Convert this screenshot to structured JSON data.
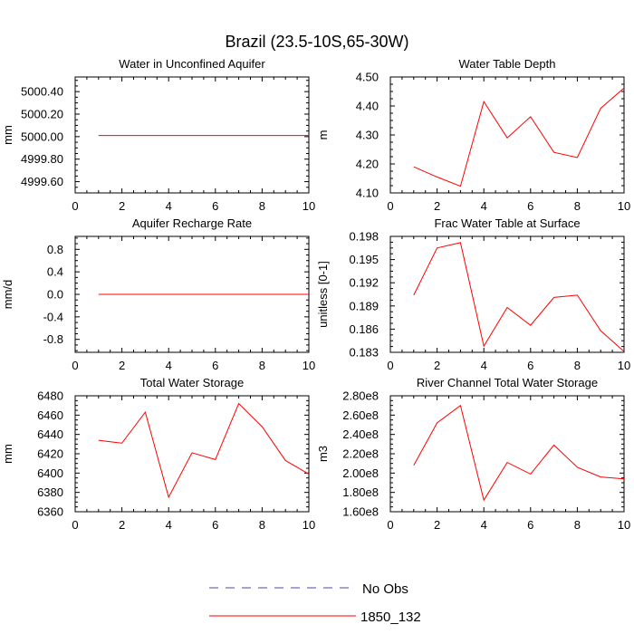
{
  "figure": {
    "title": "Brazil (23.5-10S,65-30W)"
  },
  "chart_data": [
    {
      "type": "line",
      "title": "Water in Unconfined Aquifer",
      "xlabel": "",
      "ylabel": "mm",
      "xlim": [
        0,
        10
      ],
      "ylim": [
        4999.5,
        5000.53
      ],
      "xticks": [
        0,
        2,
        4,
        6,
        8,
        10
      ],
      "xtick_labels": [
        "0",
        "2",
        "4",
        "6",
        "8",
        "10"
      ],
      "yticks": [
        4999.6,
        4999.8,
        5000.0,
        5000.2,
        5000.4
      ],
      "ytick_labels": [
        "4999.60",
        "4999.80",
        "5000.00",
        "5000.20",
        "5000.40"
      ],
      "series": [
        {
          "name": "1850_132",
          "color": "#ff0000",
          "x": [
            1,
            2,
            3,
            4,
            5,
            6,
            7,
            8,
            9,
            10
          ],
          "values": [
            5000.01,
            5000.01,
            5000.01,
            5000.01,
            5000.01,
            5000.01,
            5000.01,
            5000.01,
            5000.01,
            5000.01
          ]
        }
      ]
    },
    {
      "type": "line",
      "title": "Water Table Depth",
      "xlabel": "",
      "ylabel": "m",
      "xlim": [
        0,
        10
      ],
      "ylim": [
        4.1,
        4.5
      ],
      "xticks": [
        0,
        2,
        4,
        6,
        8,
        10
      ],
      "xtick_labels": [
        "0",
        "2",
        "4",
        "6",
        "8",
        "10"
      ],
      "yticks": [
        4.1,
        4.2,
        4.3,
        4.4,
        4.5
      ],
      "ytick_labels": [
        "4.10",
        "4.20",
        "4.30",
        "4.40",
        "4.50"
      ],
      "series": [
        {
          "name": "1850_132",
          "color": "#ff0000",
          "x": [
            1,
            2,
            3,
            4,
            5,
            6,
            7,
            8,
            9,
            10
          ],
          "values": [
            4.19,
            4.155,
            4.123,
            4.415,
            4.29,
            4.363,
            4.24,
            4.222,
            4.392,
            4.462
          ]
        }
      ]
    },
    {
      "type": "line",
      "title": "Aquifer Recharge Rate",
      "xlabel": "",
      "ylabel": "mm/d",
      "xlim": [
        0,
        10
      ],
      "ylim": [
        -1.03,
        1.03
      ],
      "xticks": [
        0,
        2,
        4,
        6,
        8,
        10
      ],
      "xtick_labels": [
        "0",
        "2",
        "4",
        "6",
        "8",
        "10"
      ],
      "yticks": [
        -0.8,
        -0.4,
        0.0,
        0.4,
        0.8
      ],
      "ytick_labels": [
        "-0.8",
        "-0.4",
        "0.0",
        "0.4",
        "0.8"
      ],
      "series": [
        {
          "name": "1850_132",
          "color": "#ff0000",
          "x": [
            1,
            2,
            3,
            4,
            5,
            6,
            7,
            8,
            9,
            10
          ],
          "values": [
            0,
            0,
            0,
            0,
            0,
            0,
            0,
            0,
            0,
            0
          ]
        }
      ]
    },
    {
      "type": "line",
      "title": "Frac Water Table at Surface",
      "xlabel": "",
      "ylabel": "unitless [0-1]",
      "xlim": [
        0,
        10
      ],
      "ylim": [
        0.183,
        0.198
      ],
      "xticks": [
        0,
        2,
        4,
        6,
        8,
        10
      ],
      "xtick_labels": [
        "0",
        "2",
        "4",
        "6",
        "8",
        "10"
      ],
      "yticks": [
        0.183,
        0.186,
        0.189,
        0.192,
        0.195,
        0.198
      ],
      "ytick_labels": [
        "0.183",
        "0.186",
        "0.189",
        "0.192",
        "0.195",
        "0.198"
      ],
      "series": [
        {
          "name": "1850_132",
          "color": "#ff0000",
          "x": [
            1,
            2,
            3,
            4,
            5,
            6,
            7,
            8,
            9,
            10
          ],
          "values": [
            0.1904,
            0.1965,
            0.1972,
            0.1838,
            0.1888,
            0.1865,
            0.1901,
            0.1904,
            0.1858,
            0.1831
          ]
        }
      ]
    },
    {
      "type": "line",
      "title": "Total Water Storage",
      "xlabel": "",
      "ylabel": "mm",
      "xlim": [
        0,
        10
      ],
      "ylim": [
        6360,
        6480
      ],
      "xticks": [
        0,
        2,
        4,
        6,
        8,
        10
      ],
      "xtick_labels": [
        "0",
        "2",
        "4",
        "6",
        "8",
        "10"
      ],
      "yticks": [
        6360,
        6380,
        6400,
        6420,
        6440,
        6460,
        6480
      ],
      "ytick_labels": [
        "6360",
        "6380",
        "6400",
        "6420",
        "6440",
        "6460",
        "6480"
      ],
      "series": [
        {
          "name": "1850_132",
          "color": "#ff0000",
          "x": [
            1,
            2,
            3,
            4,
            5,
            6,
            7,
            8,
            9,
            10
          ],
          "values": [
            6434,
            6431,
            6463,
            6375,
            6421,
            6414,
            6472,
            6448,
            6413,
            6399
          ]
        }
      ]
    },
    {
      "type": "line",
      "title": "River Channel Total Water Storage",
      "xlabel": "",
      "ylabel": "m3",
      "xlim": [
        0,
        10
      ],
      "ylim": [
        160000000,
        280000000
      ],
      "xticks": [
        0,
        2,
        4,
        6,
        8,
        10
      ],
      "xtick_labels": [
        "0",
        "2",
        "4",
        "6",
        "8",
        "10"
      ],
      "yticks": [
        160000000,
        180000000,
        200000000,
        220000000,
        240000000,
        260000000,
        280000000
      ],
      "ytick_labels": [
        "1.60e8",
        "1.80e8",
        "2.00e8",
        "2.20e8",
        "2.40e8",
        "2.60e8",
        "2.80e8"
      ],
      "series": [
        {
          "name": "1850_132",
          "color": "#ff0000",
          "x": [
            1,
            2,
            3,
            4,
            5,
            6,
            7,
            8,
            9,
            10
          ],
          "values": [
            208000000,
            252000000,
            270000000,
            172000000,
            211000000,
            199000000,
            229000000,
            206000000,
            196000000,
            194000000
          ]
        }
      ]
    }
  ],
  "legend": {
    "items": [
      {
        "label": "No Obs",
        "color": "#4a4aa8",
        "dashed": true
      },
      {
        "label": "1850_132",
        "color": "#ff0000",
        "dashed": false
      }
    ]
  }
}
